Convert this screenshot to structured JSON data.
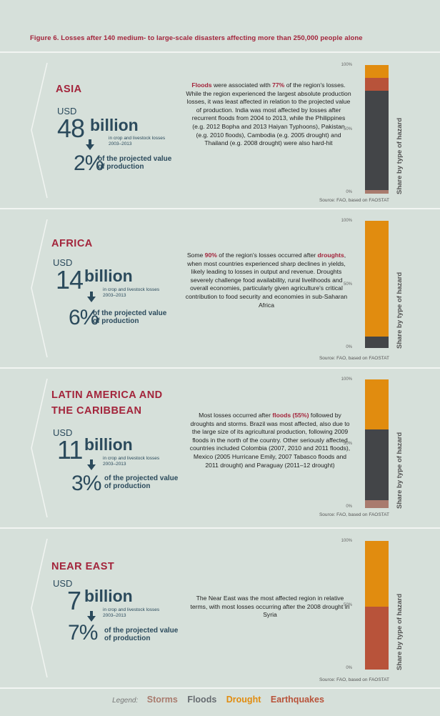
{
  "title": "Figure 6. Losses after 140 medium- to large-scale disasters affecting more than 250,000 people alone",
  "common": {
    "usd": "USD",
    "billion": "billion",
    "crop_text": "in crop and livestock losses 2003–2013",
    "pct_label": "of the projected value of production",
    "source": "Source: FAO, based on FAOSTAT",
    "axis_title": "Share by type of hazard",
    "ticks": [
      "100%",
      "50%",
      "0%"
    ]
  },
  "colors": {
    "storms": "#a97b6e",
    "floods": "#434548",
    "drought": "#e18c0f",
    "earthquakes": "#b8533a"
  },
  "legend": {
    "label": "Legend:",
    "items": [
      {
        "name": "Storms",
        "color": "#a97b6e"
      },
      {
        "name": "Floods",
        "color": "#666b70"
      },
      {
        "name": "Drought",
        "color": "#e18c0f"
      },
      {
        "name": "Earthquakes",
        "color": "#b8533a"
      }
    ]
  },
  "chart_data": [
    {
      "type": "bar",
      "region": "ASIA",
      "amount": "48",
      "percent": "2",
      "ylim": [
        0,
        100
      ],
      "segments": [
        {
          "hazard": "Storms",
          "value": 3
        },
        {
          "hazard": "Floods",
          "value": 77
        },
        {
          "hazard": "Earthquakes",
          "value": 10
        },
        {
          "hazard": "Drought",
          "value": 10
        }
      ],
      "text_parts": [
        {
          "t": "Floods",
          "hl": true
        },
        {
          "t": " were associated with ",
          "hl": false
        },
        {
          "t": "77%",
          "hl": true
        },
        {
          "t": " of the region's losses. While the region experienced the largest absolute production losses, it was least affected in relation to the projected value of production. India was most affected by losses after recurrent floods from 2004 to 2013, while the Philippines (e.g. 2012 Bopha and 2013 Haiyan Typhoons), Pakistan (e.g. 2010 floods), Cambodia (e.g. 2005 drought) and Thailand (e.g. 2008 drought) were also hard-hit",
          "hl": false
        }
      ]
    },
    {
      "type": "bar",
      "region": "AFRICA",
      "amount": "14",
      "percent": "6",
      "ylim": [
        0,
        100
      ],
      "segments": [
        {
          "hazard": "Floods",
          "value": 9
        },
        {
          "hazard": "Drought",
          "value": 91
        }
      ],
      "text_parts": [
        {
          "t": "Some ",
          "hl": false
        },
        {
          "t": "90%",
          "hl": true
        },
        {
          "t": " of the region's losses occurred after ",
          "hl": false
        },
        {
          "t": "droughts",
          "hl": true
        },
        {
          "t": ", when most countries experienced sharp declines in yields, likely leading to losses in output and revenue. Droughts severely challenge food availability, rural livelihoods and overall economies, particularly given agriculture's critical contribution to food security and economies in sub-Saharan Africa",
          "hl": false
        }
      ]
    },
    {
      "type": "bar",
      "region": "LATIN AMERICA AND THE CARIBBEAN",
      "amount": "11",
      "percent": "3",
      "ylim": [
        0,
        100
      ],
      "segments": [
        {
          "hazard": "Storms",
          "value": 6
        },
        {
          "hazard": "Floods",
          "value": 55
        },
        {
          "hazard": "Drought",
          "value": 39
        }
      ],
      "text_parts": [
        {
          "t": "Most losses occurred after ",
          "hl": false
        },
        {
          "t": "floods (55%)",
          "hl": true
        },
        {
          "t": " followed by droughts and storms. Brazil was most affected, also due to the large size of its agricultural production, following 2009 floods in the north of the country. Other seriously affected countries included Colombia (2007, 2010 and 2011 floods), Mexico (2005 Hurricane Emily, 2007 Tabasco floods and 2011 drought) and Paraguay (2011–12 drought)",
          "hl": false
        }
      ]
    },
    {
      "type": "bar",
      "region": "NEAR EAST",
      "amount": "7",
      "percent": "7",
      "ylim": [
        0,
        100
      ],
      "segments": [
        {
          "hazard": "Earthquakes",
          "value": 49
        },
        {
          "hazard": "Drought",
          "value": 51
        }
      ],
      "text_parts": [
        {
          "t": "The Near East was the most affected region in relative terms, with most losses occurring after the 2008 drought in Syria",
          "hl": false
        }
      ]
    }
  ]
}
